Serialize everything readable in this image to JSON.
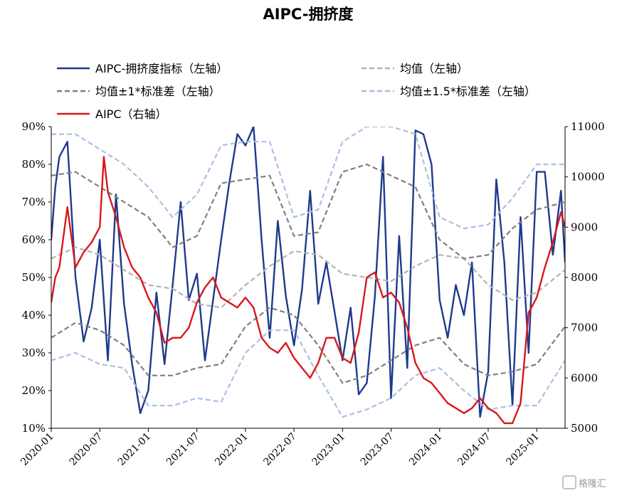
{
  "chart_data": {
    "type": "line",
    "title": "AIPC-拥挤度",
    "x_ticks": [
      "2020-01",
      "2020-07",
      "2021-01",
      "2021-07",
      "2022-01",
      "2022-07",
      "2023-01",
      "2023-07",
      "2024-01",
      "2024-07",
      "2025-01"
    ],
    "x_range": [
      "2020-01",
      "2025-03"
    ],
    "y_left": {
      "ticks": [
        "10%",
        "20%",
        "30%",
        "40%",
        "50%",
        "60%",
        "70%",
        "80%",
        "90%"
      ],
      "range": [
        10,
        90
      ]
    },
    "y_right": {
      "ticks": [
        "5000",
        "6000",
        "7000",
        "8000",
        "9000",
        "10000",
        "11000"
      ],
      "range": [
        5000,
        11000
      ]
    },
    "grid": false,
    "legend_position": "top",
    "series": [
      {
        "name": "AIPC-拥挤度指标（左轴）",
        "axis": "left",
        "color": "#1f3a8c",
        "style": "solid",
        "t": [
          0,
          0.5,
          1,
          2,
          3,
          4,
          5,
          6,
          7,
          8,
          9,
          10,
          11,
          12,
          13,
          14,
          15,
          16,
          17,
          18,
          19,
          20,
          21,
          22,
          23,
          24,
          25,
          26,
          27,
          28,
          29,
          30,
          31,
          32,
          33,
          34,
          35,
          36,
          37,
          38,
          39,
          40,
          41,
          42,
          43,
          44,
          45,
          46,
          47,
          48,
          49,
          50,
          51,
          52,
          53,
          54,
          55,
          56,
          57,
          58,
          59,
          60,
          61,
          62,
          63,
          63.5
        ],
        "v": [
          60,
          74,
          82,
          86,
          50,
          33,
          42,
          60,
          28,
          72,
          43,
          27,
          14,
          20,
          46,
          27,
          48,
          70,
          44,
          51,
          28,
          44,
          60,
          75,
          88,
          85,
          90,
          60,
          34,
          65,
          45,
          32,
          47,
          73,
          43,
          54,
          41,
          28,
          42,
          19,
          22,
          45,
          82,
          18,
          61,
          26,
          89,
          88,
          80,
          44,
          34,
          48,
          40,
          54,
          13,
          25,
          76,
          54,
          16,
          66,
          30,
          78,
          78,
          56,
          73,
          54
        ]
      },
      {
        "name": "均值（左轴）",
        "axis": "left",
        "color": "#b3b3b3",
        "style": "dashed",
        "t": [
          0,
          3,
          6,
          9,
          12,
          15,
          18,
          21,
          24,
          27,
          30,
          33,
          36,
          39,
          42,
          45,
          48,
          51,
          54,
          57,
          60,
          63.5
        ],
        "v": [
          55,
          58,
          56,
          52,
          48,
          47,
          43,
          42,
          48,
          53,
          57,
          56,
          51,
          50,
          49,
          53,
          56,
          55,
          48,
          44,
          46,
          52
        ]
      },
      {
        "name": "均值±1*标准差（左轴）",
        "axis": "left",
        "color": "#7f7f7f",
        "style": "dashed",
        "t": [
          0,
          3,
          6,
          9,
          12,
          15,
          18,
          21,
          24,
          27,
          30,
          33,
          36,
          39,
          42,
          45,
          48,
          51,
          54,
          57,
          60,
          63.5
        ],
        "v": [
          77,
          78,
          74,
          70,
          66,
          58,
          61,
          75,
          76,
          77,
          61,
          62,
          78,
          80,
          77,
          74,
          60,
          55,
          56,
          63,
          68,
          70
        ]
      },
      {
        "name": "均值±1*标准差（左轴）下",
        "axis": "left",
        "color": "#7f7f7f",
        "style": "dashed",
        "t": [
          0,
          3,
          6,
          9,
          12,
          15,
          18,
          21,
          24,
          27,
          30,
          33,
          36,
          39,
          42,
          45,
          48,
          51,
          54,
          57,
          60,
          63.5
        ],
        "v": [
          34,
          38,
          36,
          32,
          24,
          24,
          26,
          27,
          37,
          42,
          40,
          32,
          22,
          24,
          28,
          32,
          34,
          27,
          24,
          25,
          27,
          37
        ]
      },
      {
        "name": "均值±1.5*标准差（左轴）",
        "axis": "left",
        "color": "#a9c0e2",
        "style": "dashed",
        "t": [
          0,
          3,
          6,
          9,
          12,
          15,
          18,
          21,
          24,
          27,
          30,
          33,
          36,
          39,
          42,
          45,
          48,
          51,
          54,
          57,
          60,
          63.5
        ],
        "v": [
          88,
          88,
          84,
          80,
          74,
          66,
          72,
          85,
          86,
          86,
          66,
          68,
          86,
          90,
          90,
          88,
          66,
          63,
          64,
          71,
          80,
          80
        ]
      },
      {
        "name": "均值±1.5*标准差（左轴）下",
        "axis": "left",
        "color": "#a9c0e2",
        "style": "dashed",
        "t": [
          0,
          3,
          6,
          9,
          12,
          15,
          18,
          21,
          24,
          27,
          30,
          33,
          36,
          39,
          42,
          45,
          48,
          51,
          54,
          57,
          60,
          63.5
        ],
        "v": [
          28,
          30,
          27,
          26,
          16,
          16,
          18,
          17,
          30,
          36,
          36,
          24,
          13,
          15,
          18,
          24,
          26,
          20,
          15,
          16,
          16,
          28
        ]
      },
      {
        "name": "AIPC（右轴）",
        "axis": "right",
        "color": "#d7191c",
        "style": "solid",
        "t": [
          0,
          0.5,
          1,
          2,
          3,
          4,
          5,
          6,
          6.5,
          7,
          8,
          9,
          10,
          11,
          12,
          13,
          14,
          15,
          16,
          17,
          18,
          19,
          20,
          21,
          22,
          23,
          24,
          25,
          26,
          27,
          28,
          29,
          30,
          31,
          32,
          33,
          34,
          35,
          36,
          37,
          38,
          39,
          40,
          41,
          42,
          43,
          44,
          45,
          46,
          47,
          48,
          49,
          50,
          51,
          52,
          53,
          54,
          55,
          56,
          57,
          58,
          59,
          60,
          61,
          62,
          63,
          63.5
        ],
        "v": [
          7500,
          8000,
          8200,
          9400,
          8200,
          8500,
          8700,
          9000,
          10400,
          9700,
          9200,
          8600,
          8200,
          8000,
          7600,
          7300,
          6700,
          6800,
          6800,
          7000,
          7500,
          7800,
          8000,
          7600,
          7500,
          7400,
          7600,
          7400,
          6800,
          6600,
          6500,
          6700,
          6400,
          6200,
          6000,
          6300,
          6800,
          6800,
          6400,
          6300,
          6900,
          8000,
          8100,
          7600,
          7700,
          7500,
          7000,
          6300,
          6000,
          5900,
          5700,
          5500,
          5400,
          5300,
          5400,
          5600,
          5400,
          5300,
          5100,
          5100,
          5500,
          7300,
          7600,
          8200,
          8700,
          9300,
          9000
        ]
      }
    ]
  },
  "legend": [
    {
      "label": "AIPC-拥挤度指标（左轴）",
      "color": "#1f3a8c",
      "style": "solid"
    },
    {
      "label": "均值（左轴）",
      "color": "#b3b3b3",
      "style": "dashed"
    },
    {
      "label": "均值±1*标准差（左轴）",
      "color": "#7f7f7f",
      "style": "dashed"
    },
    {
      "label": "均值±1.5*标准差（左轴）",
      "color": "#a9c0e2",
      "style": "dashed"
    },
    {
      "label": "AIPC（右轴）",
      "color": "#d7191c",
      "style": "solid"
    }
  ],
  "watermark": "格隆汇"
}
